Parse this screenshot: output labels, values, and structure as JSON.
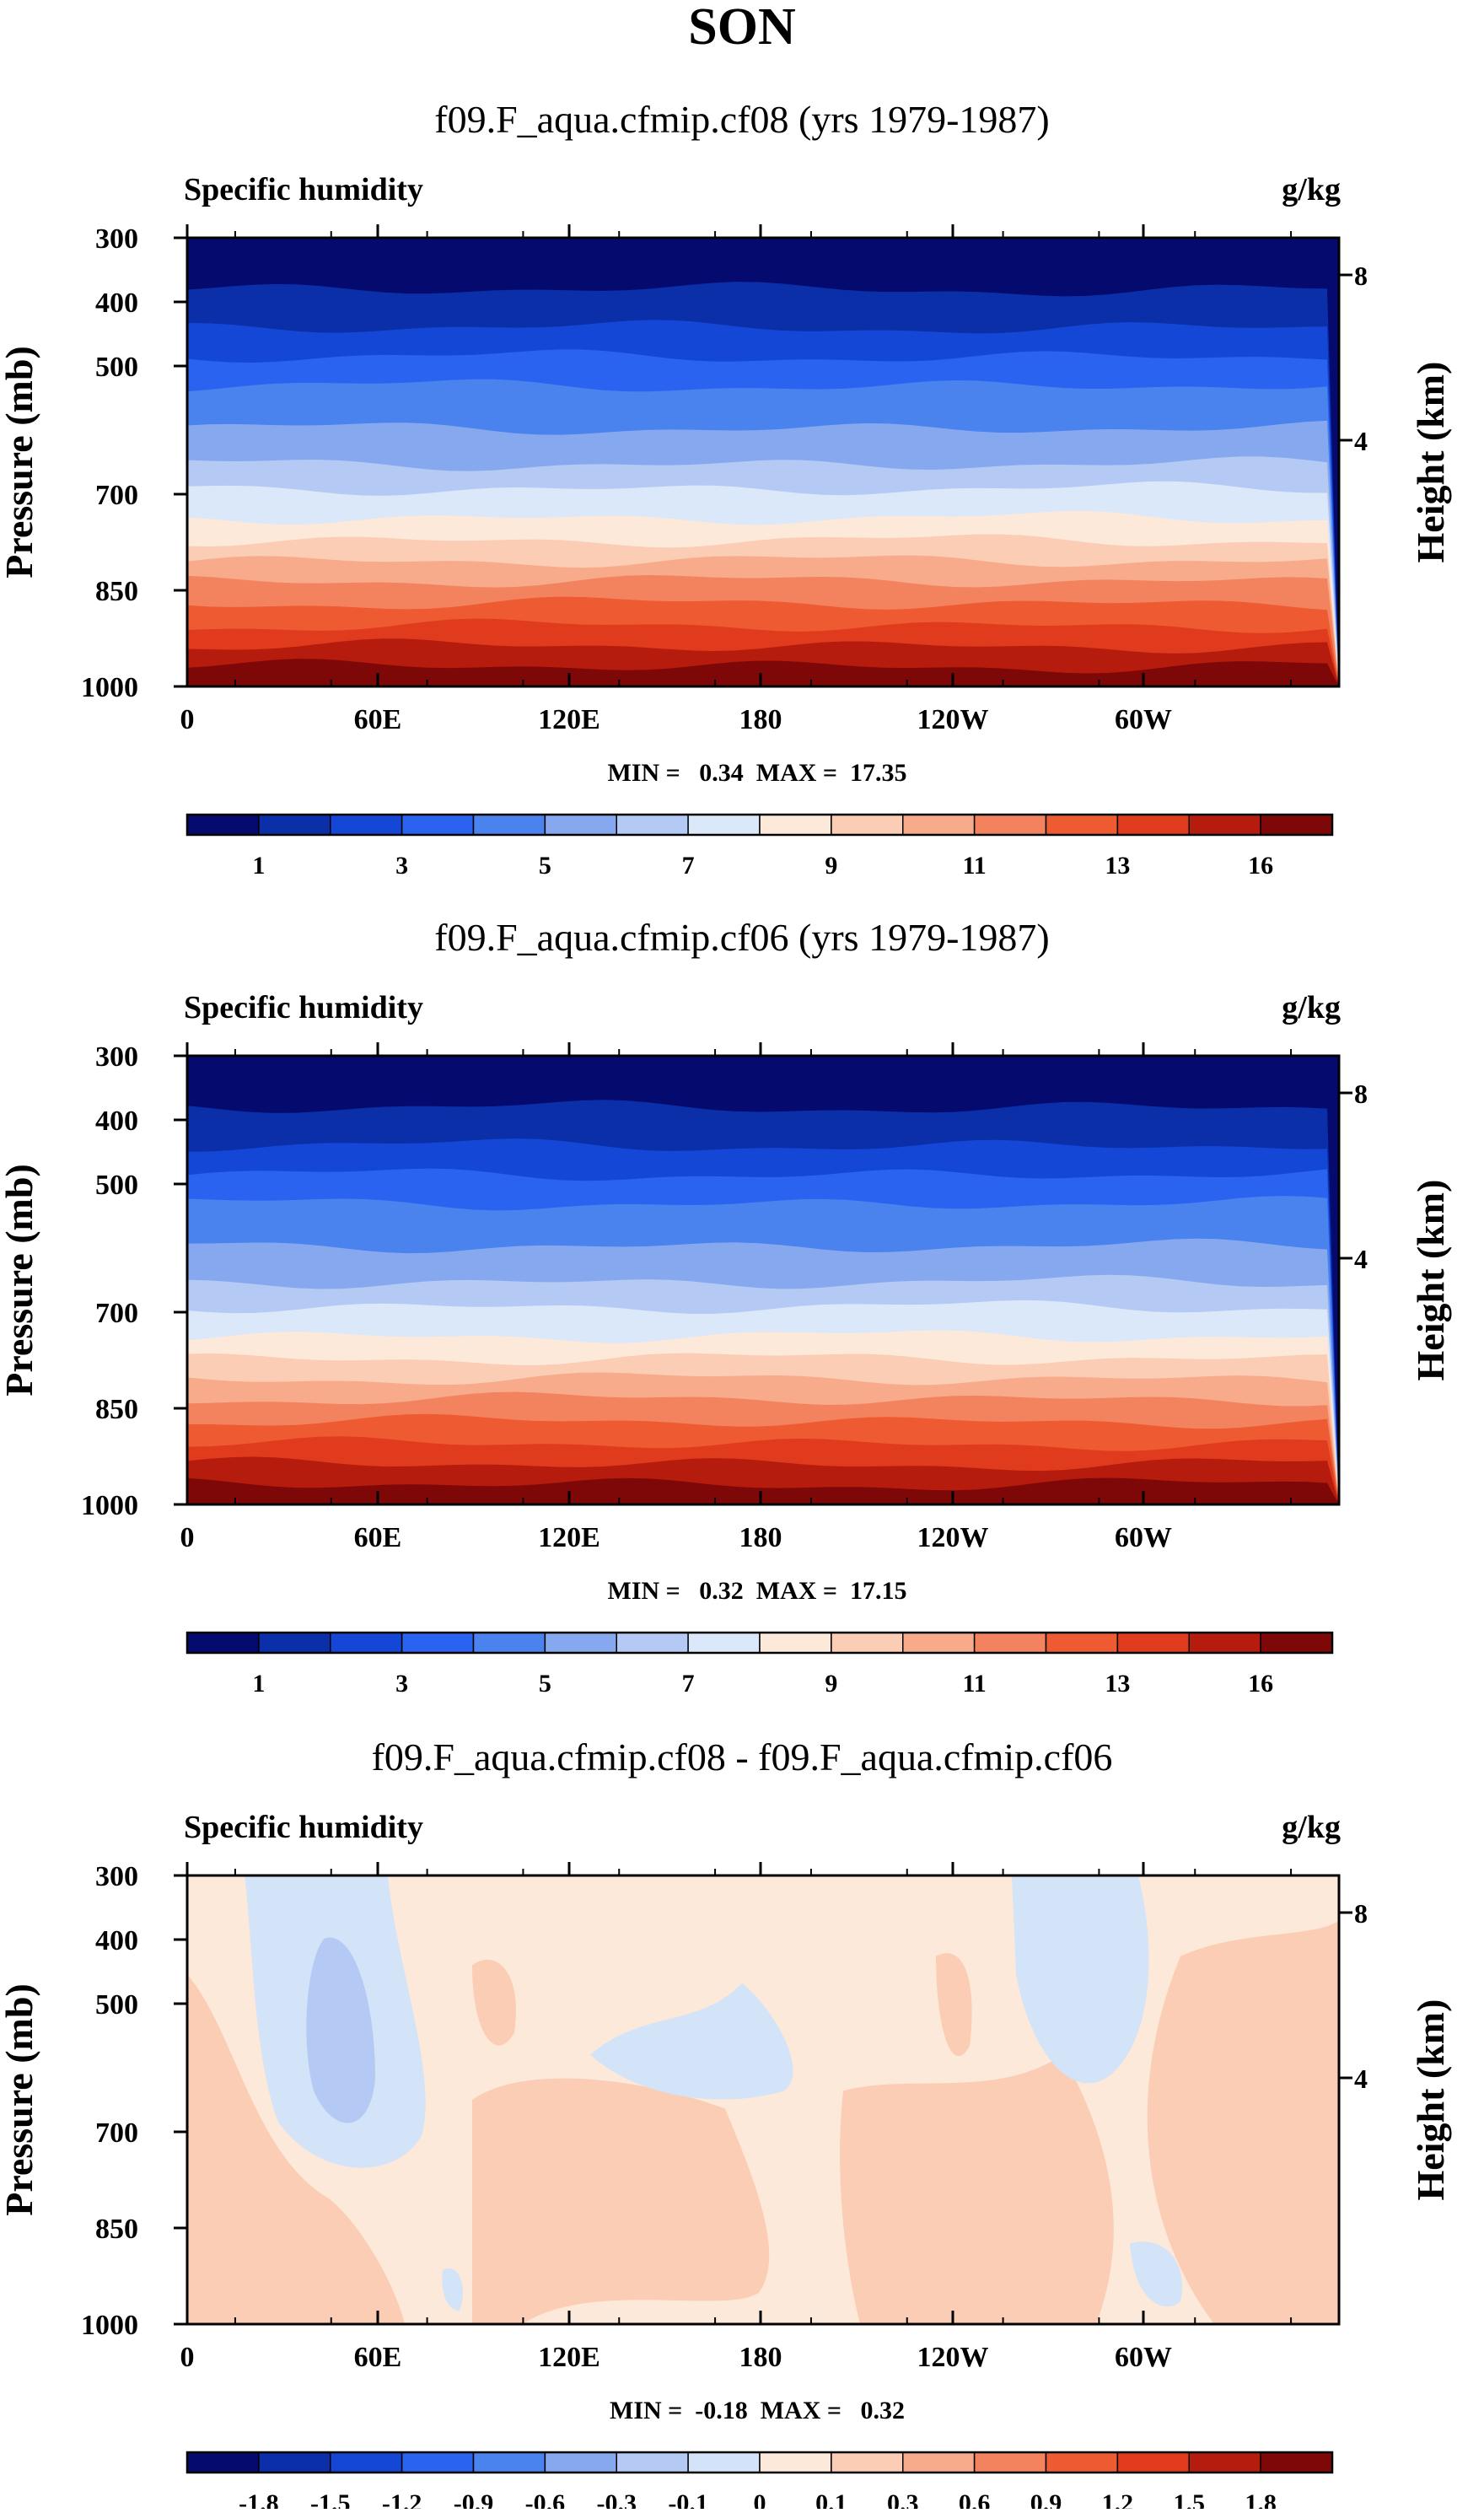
{
  "page_title": "SON",
  "colors": {
    "abs_scale": [
      "#050a6e",
      "#0a2fa8",
      "#1447d6",
      "#2a63f0",
      "#4a82ee",
      "#86a8ef",
      "#b4c9f3",
      "#dbe8fa",
      "#fde9da",
      "#fbcdb5",
      "#f7ab8a",
      "#f3835e",
      "#ee5a32",
      "#e03b1c",
      "#b51c0e",
      "#7e0808"
    ],
    "diff_scale": [
      "#050a6e",
      "#0a2fa8",
      "#1447d6",
      "#2a63f0",
      "#4a82ee",
      "#86a8ef",
      "#b4c9f3",
      "#d3e3f8",
      "#fde9da",
      "#fbcdb5",
      "#f7ab8a",
      "#f3835e",
      "#ee5a32",
      "#e03b1c",
      "#b51c0e",
      "#7e0808"
    ]
  },
  "chart_data": [
    {
      "type": "contour",
      "title": "f09.F_aqua.cfmip.cf08 (yrs 1979-1987)",
      "left_label": "Specific humidity",
      "right_label": "g/kg",
      "ylabel": "Pressure (mb)",
      "y2label": "Height (km)",
      "xticks": [
        "0",
        "60E",
        "120E",
        "180",
        "120W",
        "60W"
      ],
      "yticks": [
        "300",
        "400",
        "500",
        "700",
        "850",
        "1000"
      ],
      "y2ticks": [
        "8",
        "4"
      ],
      "stats": "MIN =   0.34  MAX =  17.35",
      "min": 0.34,
      "max": 17.35,
      "levels": [
        "1",
        "3",
        "5",
        "7",
        "9",
        "11",
        "13",
        "16"
      ],
      "field": "specific_humidity"
    },
    {
      "type": "contour",
      "title": "f09.F_aqua.cfmip.cf06 (yrs 1979-1987)",
      "left_label": "Specific humidity",
      "right_label": "g/kg",
      "ylabel": "Pressure (mb)",
      "y2label": "Height (km)",
      "xticks": [
        "0",
        "60E",
        "120E",
        "180",
        "120W",
        "60W"
      ],
      "yticks": [
        "300",
        "400",
        "500",
        "700",
        "850",
        "1000"
      ],
      "y2ticks": [
        "8",
        "4"
      ],
      "stats": "MIN =   0.32  MAX =  17.15",
      "min": 0.32,
      "max": 17.15,
      "levels": [
        "1",
        "3",
        "5",
        "7",
        "9",
        "11",
        "13",
        "16"
      ],
      "field": "specific_humidity"
    },
    {
      "type": "contour",
      "title": "f09.F_aqua.cfmip.cf08 - f09.F_aqua.cfmip.cf06",
      "left_label": "Specific humidity",
      "right_label": "g/kg",
      "ylabel": "Pressure (mb)",
      "y2label": "Height (km)",
      "xticks": [
        "0",
        "60E",
        "120E",
        "180",
        "120W",
        "60W"
      ],
      "yticks": [
        "300",
        "400",
        "500",
        "700",
        "850",
        "1000"
      ],
      "y2ticks": [
        "8",
        "4"
      ],
      "stats": "MIN =  -0.18  MAX =   0.32",
      "min": -0.18,
      "max": 0.32,
      "levels": [
        "-1.8",
        "-1.5",
        "-1.2",
        "-0.9",
        "-0.6",
        "-0.3",
        "-0.1",
        "0",
        "0.1",
        "0.3",
        "0.6",
        "0.9",
        "1.2",
        "1.5",
        "1.8"
      ],
      "field": "difference"
    }
  ]
}
